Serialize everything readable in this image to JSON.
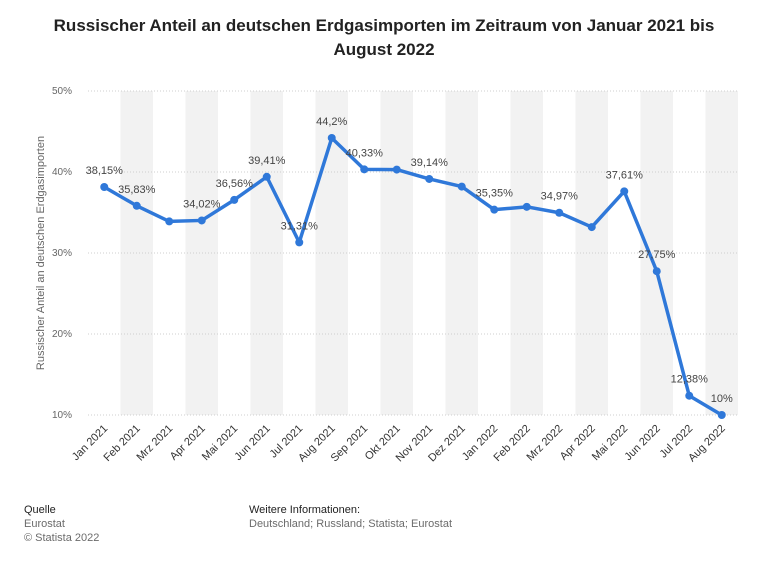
{
  "chart_data": {
    "type": "line",
    "title": "Russischer Anteil an deutschen Erdgasimporten im Zeitraum von Januar 2021 bis August 2022",
    "xlabel": "",
    "ylabel": "Russischer Anteil an deutschen Erdgasimporten",
    "ylim": [
      10,
      50
    ],
    "yticks": [
      10,
      20,
      30,
      40,
      50
    ],
    "ytick_labels": [
      "10%",
      "20%",
      "30%",
      "40%",
      "50%"
    ],
    "grid": true,
    "categories": [
      "Jan 2021",
      "Feb 2021",
      "Mrz 2021",
      "Apr 2021",
      "Mai 2021",
      "Jun 2021",
      "Jul 2021",
      "Aug 2021",
      "Sep 2021",
      "Okt 2021",
      "Nov 2021",
      "Dez 2021",
      "Jan 2022",
      "Feb 2022",
      "Mrz 2022",
      "Apr 2022",
      "Mai 2022",
      "Jun 2022",
      "Jul 2022",
      "Aug 2022"
    ],
    "series": [
      {
        "name": "Russischer Anteil",
        "color": "#2f78d9",
        "values": [
          38.15,
          35.83,
          33.9,
          34.02,
          36.56,
          39.41,
          31.31,
          44.2,
          40.33,
          40.3,
          39.14,
          38.2,
          35.35,
          35.7,
          34.97,
          33.2,
          37.61,
          27.75,
          12.38,
          10
        ],
        "labels": [
          "38,15%",
          "35,83%",
          "",
          "34,02%",
          "36,56%",
          "39,41%",
          "31,31%",
          "44,2%",
          "40,33%",
          "",
          "39,14%",
          "",
          "35,35%",
          "",
          "34,97%",
          "",
          "37,61%",
          "27,75%",
          "12,38%",
          "10%"
        ]
      }
    ]
  },
  "footer": {
    "source_heading": "Quelle",
    "source": "Eurostat",
    "copyright": "© Statista 2022",
    "info_heading": "Weitere Informationen:",
    "info": "Deutschland; Russland; Statista; Eurostat"
  },
  "colors": {
    "line": "#2f78d9",
    "band": "#f2f2f2",
    "grid": "#cfcfcf",
    "axis_text": "#666666",
    "label_text": "#444444"
  }
}
